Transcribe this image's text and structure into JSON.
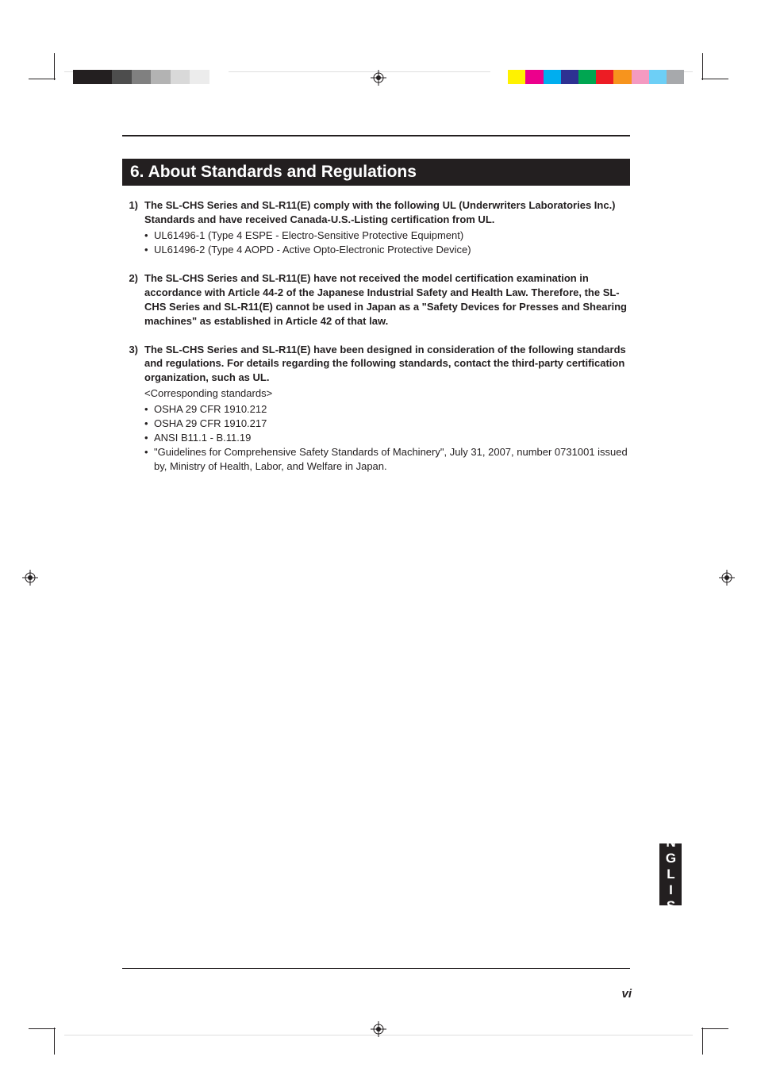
{
  "gradient_strip_colors": [
    "#231f20",
    "#231f20",
    "#4d4d4d",
    "#808080",
    "#b3b3b3",
    "#d9d9d9",
    "#ececec",
    "#ffffff"
  ],
  "color_strip_colors": [
    "#ffffff",
    "#fff200",
    "#ec008c",
    "#00aeef",
    "#2e3192",
    "#00a651",
    "#ed1c24",
    "#f7941d",
    "#f49ac1",
    "#6dcff6",
    "#a7a9ac"
  ],
  "section_title": "6. About Standards and Regulations",
  "items": [
    {
      "num": "1)",
      "lead": "The SL-CHS Series and SL-R11(E) comply with the following UL (Underwriters Laboratories Inc.) Standards and have received Canada-U.S.-Listing certification from UL.",
      "label": "",
      "bullets": [
        "UL61496-1 (Type 4 ESPE - Electro-Sensitive Protective Equipment)",
        "UL61496-2 (Type 4 AOPD - Active Opto-Electronic Protective Device)"
      ]
    },
    {
      "num": "2)",
      "lead": "The SL-CHS Series and SL-R11(E) have not received the model certification examination in accordance with Article 44-2 of the Japanese Industrial Safety and Health Law. Therefore, the SL-CHS Series and SL-R11(E) cannot be used in Japan as a \"Safety Devices for Presses and Shearing machines\" as established in Article 42 of that law.",
      "label": "",
      "bullets": []
    },
    {
      "num": "3)",
      "lead": "The SL-CHS Series and SL-R11(E) have been designed in consideration of the following standards and regulations. For details regarding the following standards, contact the third-party certification organization, such as UL.",
      "label": "<Corresponding standards>",
      "bullets": [
        "OSHA 29 CFR 1910.212",
        "OSHA 29 CFR 1910.217",
        "ANSI B11.1 - B.11.19",
        "\"Guidelines for Comprehensive Safety Standards of Machinery\", July 31, 2007, number 0731001 issued by, Ministry of Health, Labor, and Welfare in Japan."
      ]
    }
  ],
  "page_number": "vi",
  "language_tab": "ENGLISH"
}
